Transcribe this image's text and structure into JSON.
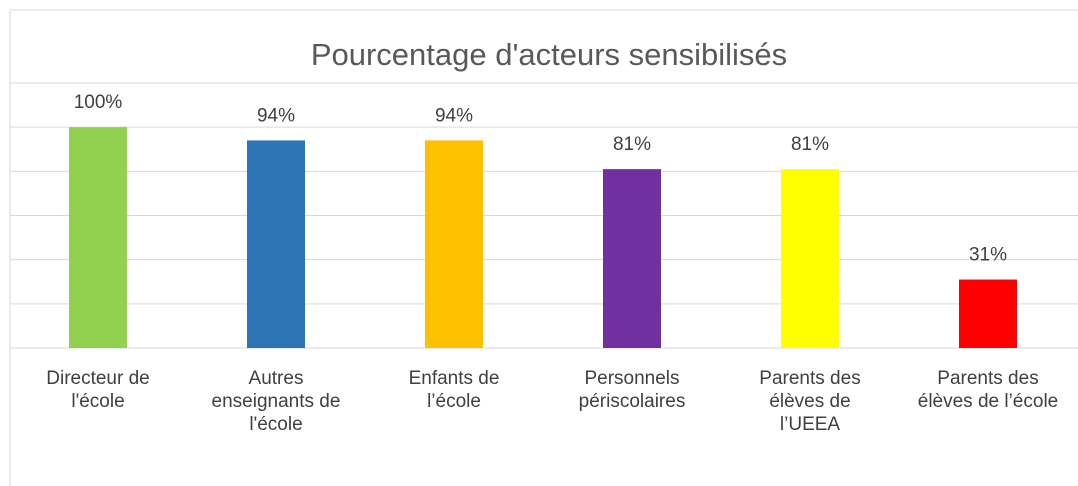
{
  "chart_data": {
    "type": "bar",
    "title": "Pourcentage d'acteurs sensibilisés",
    "categories": [
      "Directeur de\nl'école",
      "Autres\nenseignants de\nl'école",
      "Enfants de\nl’école",
      "Personnels\npériscolaires",
      "Parents des\nélèves de\nl’UEEA",
      "Parents des\nélèves de l’école"
    ],
    "values": [
      100,
      94,
      94,
      81,
      81,
      31
    ],
    "value_labels": [
      "100%",
      "94%",
      "94%",
      "81%",
      "81%",
      "31%"
    ],
    "colors": [
      "#92d050",
      "#2e75b6",
      "#ffc000",
      "#7030a0",
      "#ffff00",
      "#ff0000"
    ],
    "ylim": [
      0,
      120
    ],
    "yticks": [
      0,
      20,
      40,
      60,
      80,
      100,
      120
    ],
    "grid": true
  }
}
